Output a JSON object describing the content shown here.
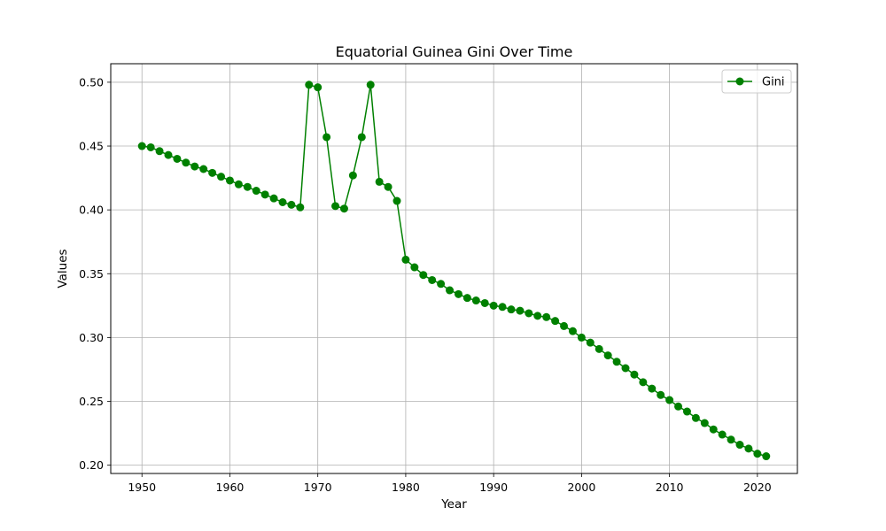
{
  "chart_data": {
    "type": "line",
    "title": "Equatorial Guinea Gini Over Time",
    "xlabel": "Year",
    "ylabel": "Values",
    "xlim": [
      1946.45,
      2024.55
    ],
    "ylim": [
      0.1935,
      0.5145
    ],
    "x_ticks": [
      1950,
      1960,
      1970,
      1980,
      1990,
      2000,
      2010,
      2020
    ],
    "y_ticks": [
      0.2,
      0.25,
      0.3,
      0.35,
      0.4,
      0.45,
      0.5
    ],
    "y_tick_labels": [
      "0.20",
      "0.25",
      "0.30",
      "0.35",
      "0.40",
      "0.45",
      "0.50"
    ],
    "grid": true,
    "legend_position": "top-right",
    "series": [
      {
        "name": "Gini",
        "color": "#008000",
        "marker": "circle",
        "x": [
          1950,
          1951,
          1952,
          1953,
          1954,
          1955,
          1956,
          1957,
          1958,
          1959,
          1960,
          1961,
          1962,
          1963,
          1964,
          1965,
          1966,
          1967,
          1968,
          1969,
          1970,
          1971,
          1972,
          1973,
          1974,
          1975,
          1976,
          1977,
          1978,
          1979,
          1980,
          1981,
          1982,
          1983,
          1984,
          1985,
          1986,
          1987,
          1988,
          1989,
          1990,
          1991,
          1992,
          1993,
          1994,
          1995,
          1996,
          1997,
          1998,
          1999,
          2000,
          2001,
          2002,
          2003,
          2004,
          2005,
          2006,
          2007,
          2008,
          2009,
          2010,
          2011,
          2012,
          2013,
          2014,
          2015,
          2016,
          2017,
          2018,
          2019,
          2020,
          2021
        ],
        "y": [
          0.45,
          0.449,
          0.446,
          0.443,
          0.44,
          0.437,
          0.434,
          0.432,
          0.429,
          0.426,
          0.423,
          0.42,
          0.418,
          0.415,
          0.412,
          0.409,
          0.406,
          0.404,
          0.402,
          0.498,
          0.496,
          0.457,
          0.403,
          0.401,
          0.427,
          0.457,
          0.498,
          0.422,
          0.418,
          0.407,
          0.361,
          0.355,
          0.349,
          0.345,
          0.342,
          0.337,
          0.334,
          0.331,
          0.329,
          0.327,
          0.325,
          0.324,
          0.322,
          0.321,
          0.319,
          0.317,
          0.316,
          0.313,
          0.309,
          0.305,
          0.3,
          0.296,
          0.291,
          0.286,
          0.281,
          0.276,
          0.271,
          0.265,
          0.26,
          0.255,
          0.251,
          0.246,
          0.242,
          0.237,
          0.233,
          0.228,
          0.224,
          0.22,
          0.216,
          0.213,
          0.209,
          0.207
        ]
      }
    ]
  }
}
